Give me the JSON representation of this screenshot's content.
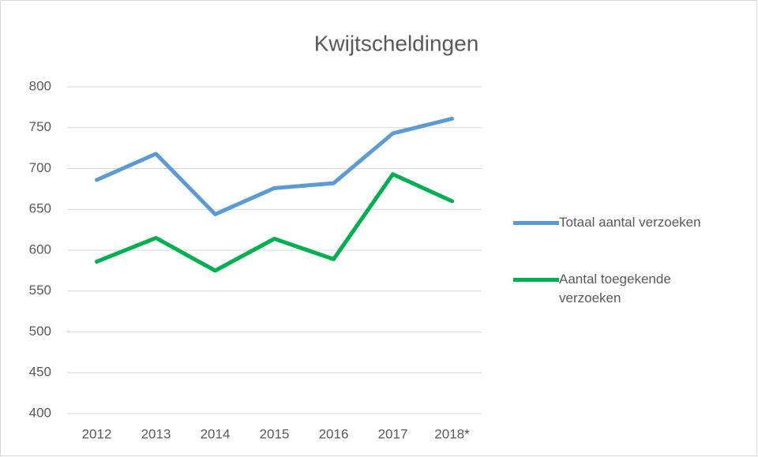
{
  "chart_data": {
    "type": "line",
    "title": "Kwijtscheldingen",
    "categories": [
      "2012",
      "2013",
      "2014",
      "2015",
      "2016",
      "2017",
      "2018*"
    ],
    "series": [
      {
        "name": "Totaal aantal verzoeken",
        "color": "#5b9bd5",
        "values": [
          686,
          718,
          644,
          676,
          682,
          743,
          761
        ]
      },
      {
        "name": "Aantal toegekende verzoeken",
        "color": "#00b050",
        "values": [
          586,
          615,
          575,
          614,
          589,
          693,
          660
        ]
      }
    ],
    "ylim": [
      400,
      800
    ],
    "yticks": [
      400,
      450,
      500,
      550,
      600,
      650,
      700,
      750,
      800
    ],
    "grid": true,
    "legend": "right"
  }
}
